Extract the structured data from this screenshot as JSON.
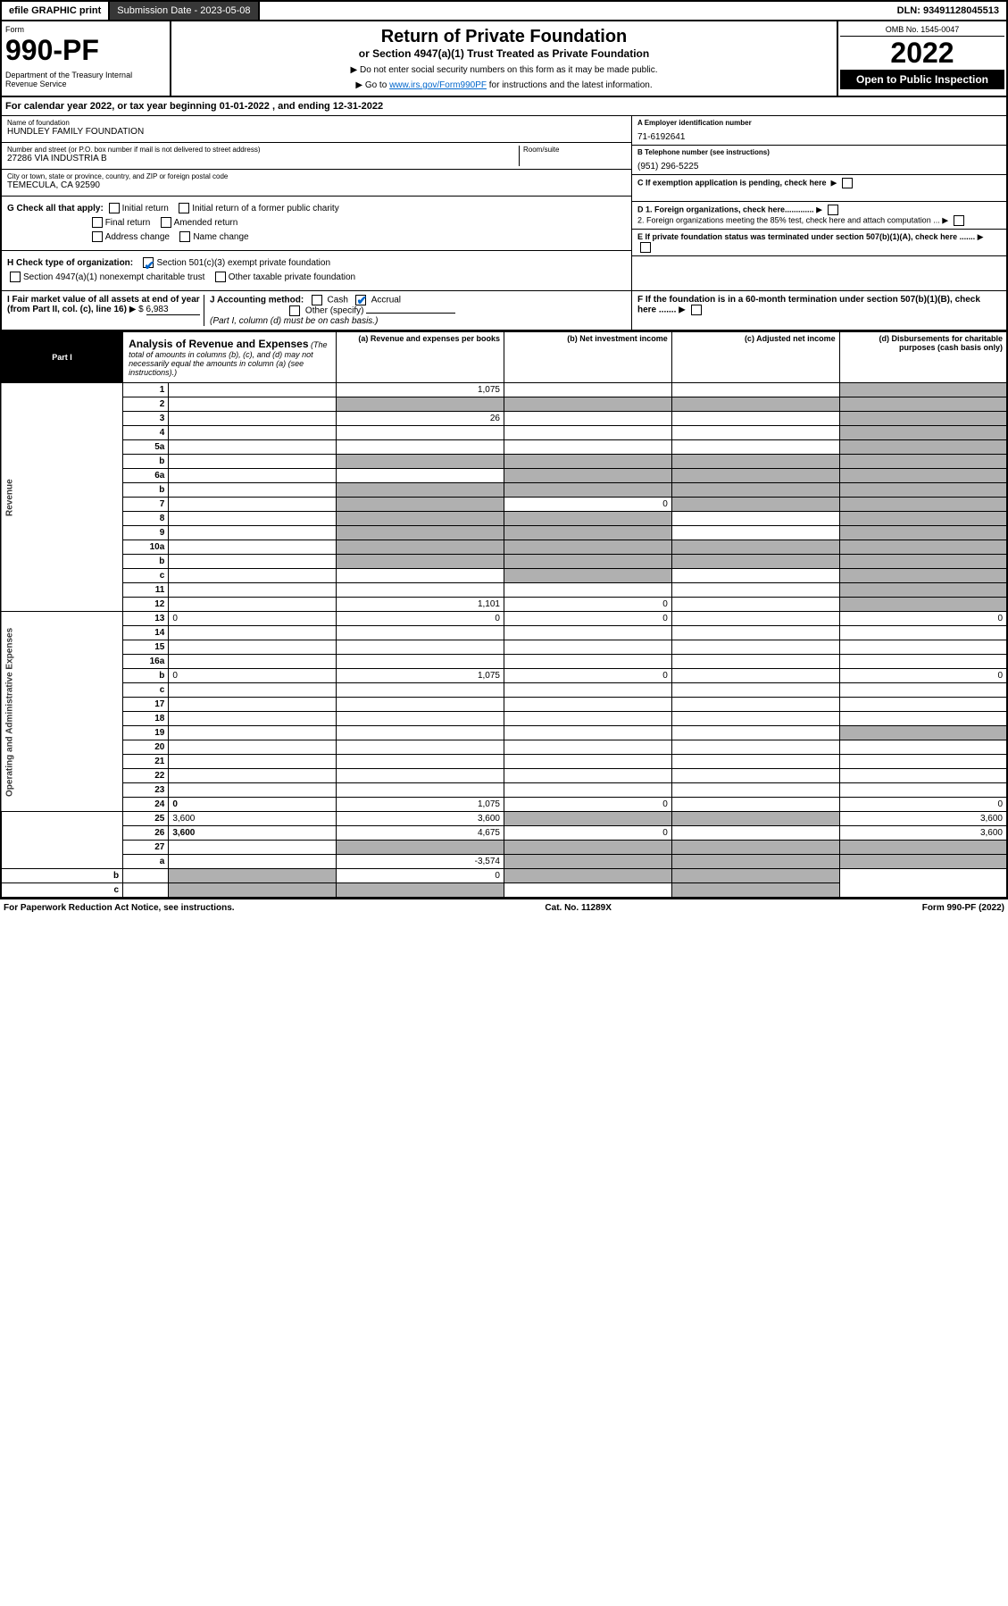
{
  "top": {
    "efile": "efile GRAPHIC print",
    "subdate_label": "Submission Date - 2023-05-08",
    "dln": "DLN: 93491128045513"
  },
  "header": {
    "form_label": "Form",
    "form_no": "990-PF",
    "dept": "Department of the Treasury\nInternal Revenue Service",
    "title": "Return of Private Foundation",
    "subtitle": "or Section 4947(a)(1) Trust Treated as Private Foundation",
    "note1": "▶ Do not enter social security numbers on this form as it may be made public.",
    "note2_pre": "▶ Go to ",
    "note2_link": "www.irs.gov/Form990PF",
    "note2_post": " for instructions and the latest information.",
    "omb": "OMB No. 1545-0047",
    "year": "2022",
    "inspect": "Open to Public Inspection"
  },
  "calyear": "For calendar year 2022, or tax year beginning 01-01-2022        , and ending 12-31-2022",
  "entity": {
    "name_lbl": "Name of foundation",
    "name": "HUNDLEY FAMILY FOUNDATION",
    "addr_lbl": "Number and street (or P.O. box number if mail is not delivered to street address)",
    "addr": "27286 VIA INDUSTRIA B",
    "room_lbl": "Room/suite",
    "city_lbl": "City or town, state or province, country, and ZIP or foreign postal code",
    "city": "TEMECULA, CA  92590",
    "ein_lbl": "A Employer identification number",
    "ein": "71-6192641",
    "phone_lbl": "B Telephone number (see instructions)",
    "phone": "(951) 296-5225",
    "c_lbl": "C If exemption application is pending, check here"
  },
  "checks": {
    "g": "G Check all that apply:",
    "g_opts": [
      "Initial return",
      "Initial return of a former public charity",
      "Final return",
      "Amended return",
      "Address change",
      "Name change"
    ],
    "h": "H Check type of organization:",
    "h1": "Section 501(c)(3) exempt private foundation",
    "h2": "Section 4947(a)(1) nonexempt charitable trust",
    "h3": "Other taxable private foundation",
    "i": "I Fair market value of all assets at end of year (from Part II, col. (c), line 16)",
    "i_val": "6,983",
    "j": "J Accounting method:",
    "j_cash": "Cash",
    "j_accrual": "Accrual",
    "j_other": "Other (specify)",
    "j_note": "(Part I, column (d) must be on cash basis.)",
    "d1": "D 1. Foreign organizations, check here.............",
    "d2": "2. Foreign organizations meeting the 85% test, check here and attach computation ...",
    "e": "E  If private foundation status was terminated under section 507(b)(1)(A), check here .......",
    "f": "F  If the foundation is in a 60-month termination under section 507(b)(1)(B), check here ......."
  },
  "part1": {
    "label": "Part I",
    "title": "Analysis of Revenue and Expenses",
    "note": "(The total of amounts in columns (b), (c), and (d) may not necessarily equal the amounts in column (a) (see instructions).)",
    "cols": {
      "a": "(a) Revenue and expenses per books",
      "b": "(b) Net investment income",
      "c": "(c) Adjusted net income",
      "d": "(d) Disbursements for charitable purposes (cash basis only)"
    }
  },
  "side_labels": {
    "rev": "Revenue",
    "exp": "Operating and Administrative Expenses"
  },
  "lines": [
    {
      "n": "1",
      "d": "",
      "a": "1,075",
      "b": "",
      "c": "",
      "sh": [
        "d"
      ]
    },
    {
      "n": "2",
      "d": "",
      "a": "",
      "b": "",
      "c": "",
      "sh": [
        "a",
        "b",
        "c",
        "d"
      ],
      "bold_not": true
    },
    {
      "n": "3",
      "d": "",
      "a": "26",
      "b": "",
      "c": "",
      "sh": [
        "d"
      ]
    },
    {
      "n": "4",
      "d": "",
      "a": "",
      "b": "",
      "c": "",
      "sh": [
        "d"
      ]
    },
    {
      "n": "5a",
      "d": "",
      "a": "",
      "b": "",
      "c": "",
      "sh": [
        "d"
      ]
    },
    {
      "n": "b",
      "d": "",
      "a": "",
      "b": "",
      "c": "",
      "sh": [
        "a",
        "b",
        "c",
        "d"
      ]
    },
    {
      "n": "6a",
      "d": "",
      "a": "",
      "b": "",
      "c": "",
      "sh": [
        "b",
        "c",
        "d"
      ]
    },
    {
      "n": "b",
      "d": "",
      "a": "",
      "b": "",
      "c": "",
      "sh": [
        "a",
        "b",
        "c",
        "d"
      ]
    },
    {
      "n": "7",
      "d": "",
      "a": "",
      "b": "0",
      "c": "",
      "sh": [
        "a",
        "c",
        "d"
      ]
    },
    {
      "n": "8",
      "d": "",
      "a": "",
      "b": "",
      "c": "",
      "sh": [
        "a",
        "b",
        "d"
      ]
    },
    {
      "n": "9",
      "d": "",
      "a": "",
      "b": "",
      "c": "",
      "sh": [
        "a",
        "b",
        "d"
      ]
    },
    {
      "n": "10a",
      "d": "",
      "a": "",
      "b": "",
      "c": "",
      "sh": [
        "a",
        "b",
        "c",
        "d"
      ]
    },
    {
      "n": "b",
      "d": "",
      "a": "",
      "b": "",
      "c": "",
      "sh": [
        "a",
        "b",
        "c",
        "d"
      ]
    },
    {
      "n": "c",
      "d": "",
      "a": "",
      "b": "",
      "c": "",
      "sh": [
        "b",
        "d"
      ]
    },
    {
      "n": "11",
      "d": "",
      "a": "",
      "b": "",
      "c": "",
      "sh": [
        "d"
      ]
    },
    {
      "n": "12",
      "d": "",
      "a": "1,101",
      "b": "0",
      "c": "",
      "sh": [
        "d"
      ],
      "bold": true
    },
    {
      "n": "13",
      "d": "0",
      "a": "0",
      "b": "0",
      "c": ""
    },
    {
      "n": "14",
      "d": "",
      "a": "",
      "b": "",
      "c": ""
    },
    {
      "n": "15",
      "d": "",
      "a": "",
      "b": "",
      "c": ""
    },
    {
      "n": "16a",
      "d": "",
      "a": "",
      "b": "",
      "c": ""
    },
    {
      "n": "b",
      "d": "0",
      "a": "1,075",
      "b": "0",
      "c": ""
    },
    {
      "n": "c",
      "d": "",
      "a": "",
      "b": "",
      "c": ""
    },
    {
      "n": "17",
      "d": "",
      "a": "",
      "b": "",
      "c": ""
    },
    {
      "n": "18",
      "d": "",
      "a": "",
      "b": "",
      "c": ""
    },
    {
      "n": "19",
      "d": "",
      "a": "",
      "b": "",
      "c": "",
      "sh": [
        "d"
      ]
    },
    {
      "n": "20",
      "d": "",
      "a": "",
      "b": "",
      "c": ""
    },
    {
      "n": "21",
      "d": "",
      "a": "",
      "b": "",
      "c": ""
    },
    {
      "n": "22",
      "d": "",
      "a": "",
      "b": "",
      "c": ""
    },
    {
      "n": "23",
      "d": "",
      "a": "",
      "b": "",
      "c": ""
    },
    {
      "n": "24",
      "d": "0",
      "a": "1,075",
      "b": "0",
      "c": "",
      "bold": true
    },
    {
      "n": "25",
      "d": "3,600",
      "a": "3,600",
      "b": "",
      "c": "",
      "sh": [
        "b",
        "c"
      ]
    },
    {
      "n": "26",
      "d": "3,600",
      "a": "4,675",
      "b": "0",
      "c": "",
      "bold": true
    },
    {
      "n": "27",
      "d": "",
      "a": "",
      "b": "",
      "c": "",
      "sh": [
        "a",
        "b",
        "c",
        "d"
      ]
    },
    {
      "n": "a",
      "d": "",
      "a": "-3,574",
      "b": "",
      "c": "",
      "sh": [
        "b",
        "c",
        "d"
      ],
      "bold": true
    },
    {
      "n": "b",
      "d": "",
      "a": "",
      "b": "0",
      "c": "",
      "sh": [
        "a",
        "c",
        "d"
      ],
      "bold": true
    },
    {
      "n": "c",
      "d": "",
      "a": "",
      "b": "",
      "c": "",
      "sh": [
        "a",
        "b",
        "d"
      ],
      "bold": true
    }
  ],
  "footer": {
    "left": "For Paperwork Reduction Act Notice, see instructions.",
    "mid": "Cat. No. 11289X",
    "right": "Form 990-PF (2022)"
  }
}
